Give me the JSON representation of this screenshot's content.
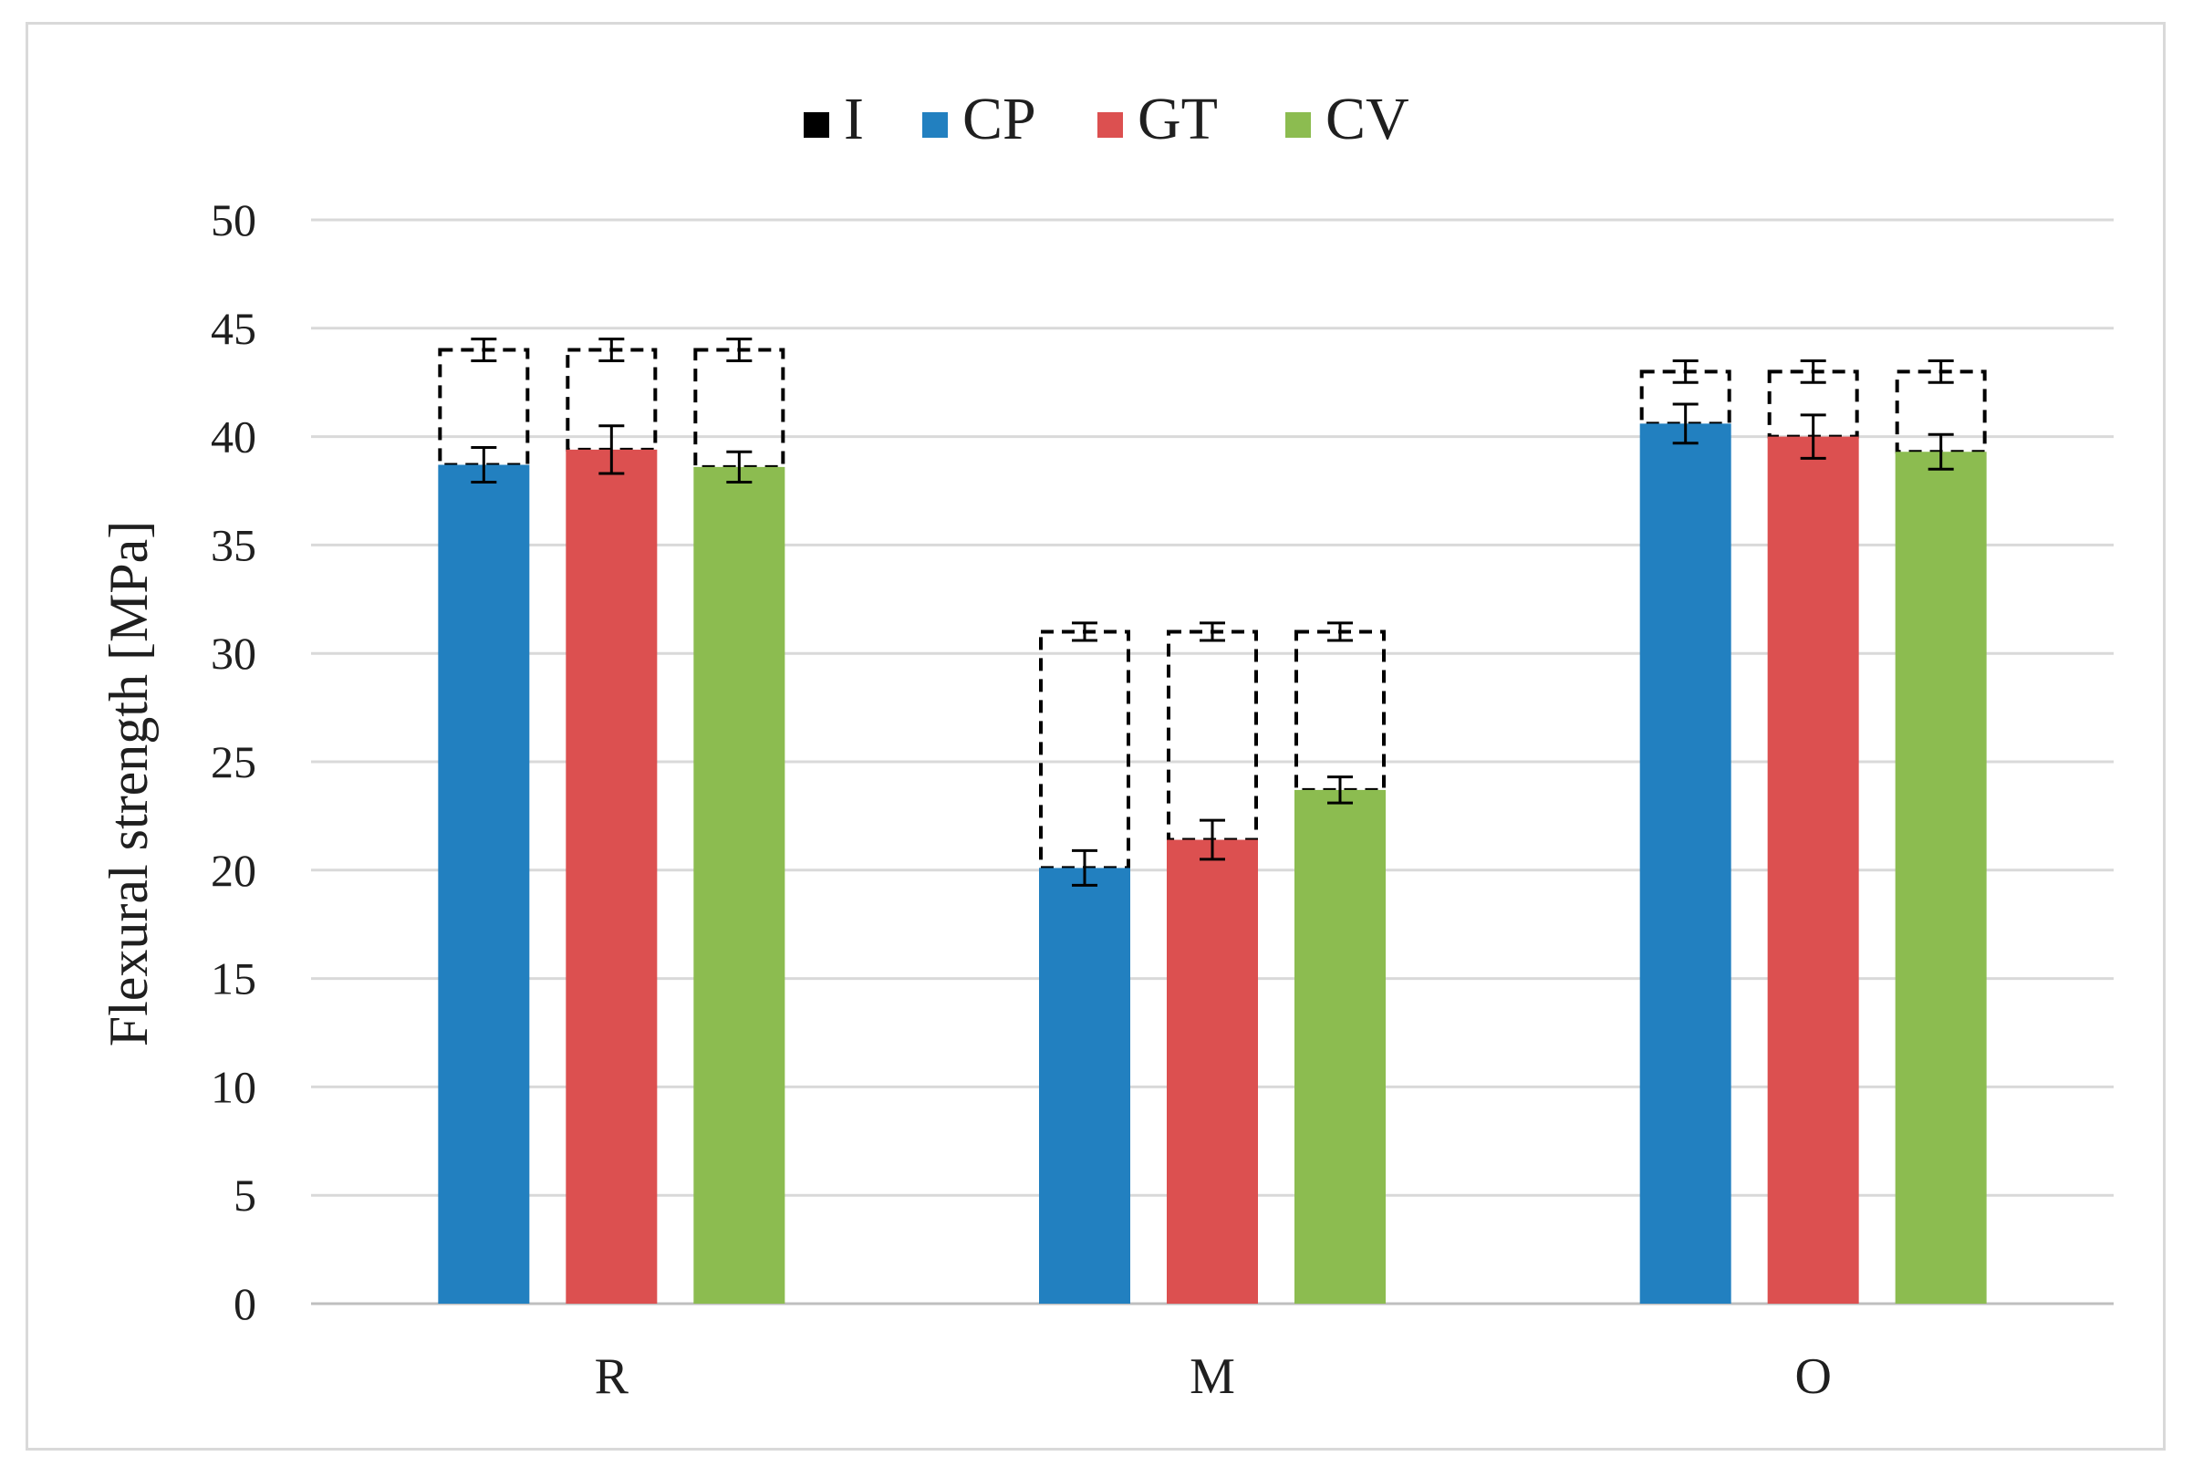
{
  "chart_data": {
    "type": "bar",
    "title": "",
    "xlabel": "",
    "ylabel": "Flexural strength [MPa]",
    "ylim": [
      0,
      50
    ],
    "yticks": [
      0,
      5,
      10,
      15,
      20,
      25,
      30,
      35,
      40,
      45,
      50
    ],
    "grid": true,
    "legend_position": "top-center",
    "categories": [
      "R",
      "M",
      "O"
    ],
    "series": [
      {
        "name": "CP",
        "color": "#2280c0",
        "values": [
          38.7,
          20.1,
          40.6
        ],
        "errors": [
          0.8,
          0.8,
          0.9
        ]
      },
      {
        "name": "GT",
        "color": "#dc5050",
        "values": [
          39.4,
          21.4,
          40.0
        ],
        "errors": [
          1.1,
          0.9,
          1.0
        ]
      },
      {
        "name": "CV",
        "color": "#8cbc50",
        "values": [
          38.6,
          23.7,
          39.3
        ],
        "errors": [
          0.7,
          0.6,
          0.8
        ]
      }
    ],
    "reference": {
      "name": "I",
      "color": "#000000",
      "style": "dashed-outline",
      "values": [
        44.0,
        31.0,
        43.0
      ],
      "errors": [
        0.5,
        0.4,
        0.5
      ]
    },
    "legend_order": [
      "I",
      "CP",
      "GT",
      "CV"
    ]
  }
}
